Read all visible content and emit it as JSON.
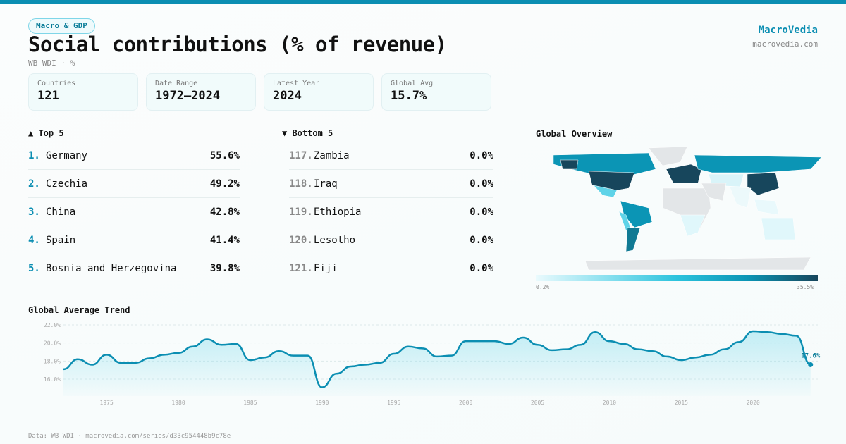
{
  "header": {
    "category": "Macro & GDP",
    "title": "Social contributions (% of revenue)",
    "subtitle": "WB WDI · %",
    "brand": "MacroVedia",
    "domain": "macrovedia.com"
  },
  "stats": [
    {
      "label": "Countries",
      "value": "121"
    },
    {
      "label": "Date Range",
      "value": "1972–2024"
    },
    {
      "label": "Latest Year",
      "value": "2024"
    },
    {
      "label": "Global Avg",
      "value": "15.7%"
    }
  ],
  "top": {
    "title": "▲ Top 5",
    "items": [
      {
        "rank": "1.",
        "name": "Germany",
        "value": "55.6%"
      },
      {
        "rank": "2.",
        "name": "Czechia",
        "value": "49.2%"
      },
      {
        "rank": "3.",
        "name": "China",
        "value": "42.8%"
      },
      {
        "rank": "4.",
        "name": "Spain",
        "value": "41.4%"
      },
      {
        "rank": "5.",
        "name": "Bosnia and Herzegovina",
        "value": "39.8%"
      }
    ]
  },
  "bottom": {
    "title": "▼ Bottom 5",
    "items": [
      {
        "rank": "117.",
        "name": "Zambia",
        "value": "0.0%"
      },
      {
        "rank": "118.",
        "name": "Iraq",
        "value": "0.0%"
      },
      {
        "rank": "119.",
        "name": "Ethiopia",
        "value": "0.0%"
      },
      {
        "rank": "120.",
        "name": "Lesotho",
        "value": "0.0%"
      },
      {
        "rank": "121.",
        "name": "Fiji",
        "value": "0.0%"
      }
    ]
  },
  "map": {
    "title": "Global Overview",
    "min_label": "0.2%",
    "max_label": "35.5%"
  },
  "footer": "Data: WB WDI · macrovedia.com/series/d33c954448b9c78e",
  "chart_data": {
    "type": "area",
    "title": "Global Average Trend",
    "ylim": [
      14.5,
      22.2
    ],
    "yticks": [
      16,
      18,
      20,
      22
    ],
    "ytick_labels": [
      "16.0%",
      "18.0%",
      "20.0%",
      "22.0%"
    ],
    "xticks": [
      1975,
      1980,
      1985,
      1990,
      1995,
      2000,
      2005,
      2010,
      2015,
      2020
    ],
    "last_label": "17.6%",
    "x": [
      1972,
      1973,
      1974,
      1975,
      1976,
      1977,
      1978,
      1979,
      1980,
      1981,
      1982,
      1983,
      1984,
      1985,
      1986,
      1987,
      1988,
      1989,
      1990,
      1991,
      1992,
      1993,
      1994,
      1995,
      1996,
      1997,
      1998,
      1999,
      2000,
      2001,
      2002,
      2003,
      2004,
      2005,
      2006,
      2007,
      2008,
      2009,
      2010,
      2011,
      2012,
      2013,
      2014,
      2015,
      2016,
      2017,
      2018,
      2019,
      2020,
      2021,
      2022,
      2023,
      2024
    ],
    "values": [
      17.1,
      18.2,
      17.6,
      18.7,
      17.8,
      17.8,
      18.3,
      18.7,
      18.9,
      19.6,
      20.4,
      19.8,
      19.9,
      18.1,
      18.4,
      19.1,
      18.6,
      18.6,
      15.1,
      16.6,
      17.4,
      17.6,
      17.8,
      18.8,
      19.6,
      19.4,
      18.5,
      18.6,
      20.2,
      20.2,
      20.2,
      19.9,
      20.6,
      19.8,
      19.2,
      19.3,
      19.8,
      21.2,
      20.2,
      19.9,
      19.3,
      19.1,
      18.5,
      18.1,
      18.4,
      18.7,
      19.3,
      20.1,
      21.3,
      21.2,
      21.0,
      20.8,
      17.6
    ]
  },
  "colors": {
    "accent": "#0b8eb2",
    "dark": "#17465c"
  }
}
